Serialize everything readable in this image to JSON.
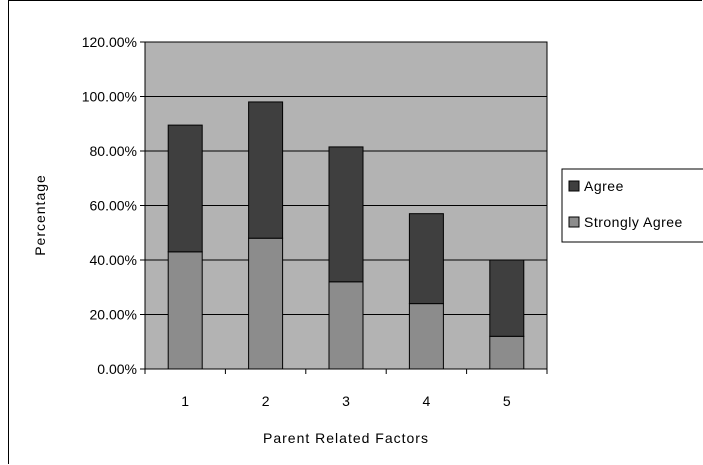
{
  "chart_data": {
    "type": "bar",
    "stacked": true,
    "categories": [
      "1",
      "2",
      "3",
      "4",
      "5"
    ],
    "series": [
      {
        "name": "Strongly Agree",
        "values": [
          43,
          48,
          32,
          24,
          12
        ],
        "color": "#8c8c8c"
      },
      {
        "name": "Agree",
        "values": [
          46.5,
          50,
          49.5,
          33,
          28
        ],
        "color": "#3f3f3f"
      }
    ],
    "xlabel": "Parent Related Factors",
    "ylabel": "Percentage",
    "ylim": [
      0,
      120
    ],
    "yticks": [
      "0.00%",
      "20.00%",
      "40.00%",
      "60.00%",
      "80.00%",
      "100.00%",
      "120.00%"
    ],
    "grid": true,
    "plot_background": "#b3b3b3",
    "legend_position": "right"
  }
}
